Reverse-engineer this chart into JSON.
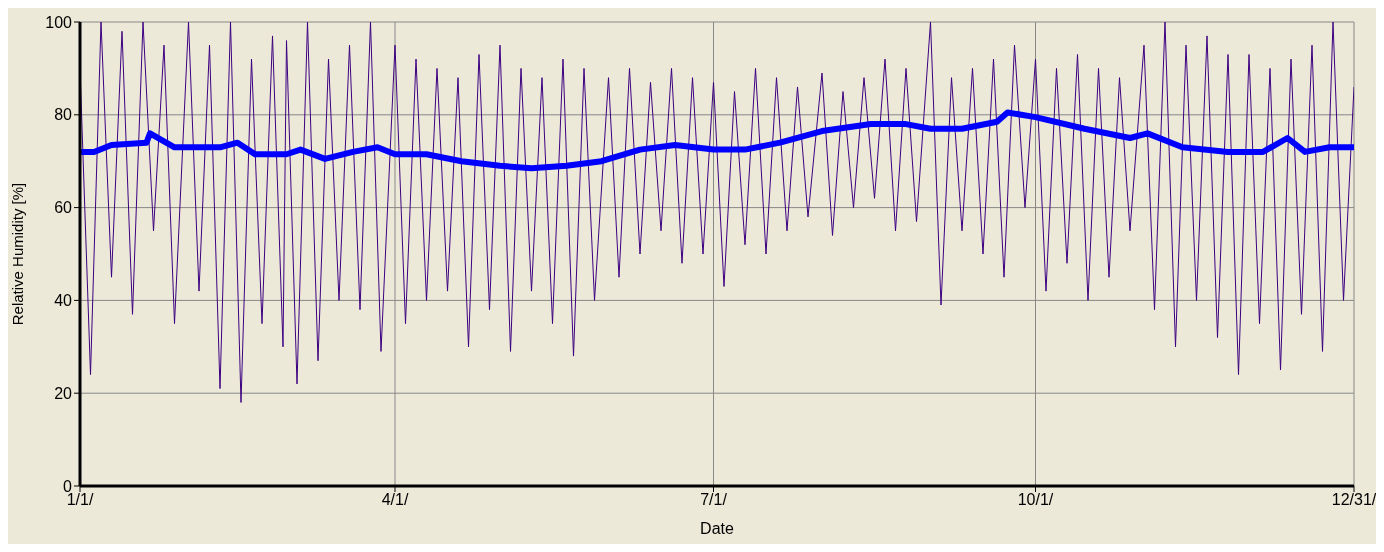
{
  "chart_data": {
    "type": "line",
    "xlabel": "Date",
    "ylabel": "Relative Humidity [%]",
    "xlim": [
      "--01-01",
      "--12-31"
    ],
    "xticks": [
      {
        "value": "--01-01",
        "label": "1/1/"
      },
      {
        "value": "--04-01",
        "label": "4/1/"
      },
      {
        "value": "--07-01",
        "label": "7/1/"
      },
      {
        "value": "--10-01",
        "label": "10/1/"
      },
      {
        "value": "--12-31",
        "label": "12/31/"
      }
    ],
    "ylim": [
      0,
      100
    ],
    "yticks": [
      0,
      20,
      40,
      60,
      80,
      100
    ],
    "grid": true,
    "marker": "none",
    "line_style": "solid",
    "series": [
      {
        "color": "#3c0080",
        "x": [
          "--01-01",
          "--01-04",
          "--01-07",
          "--01-10",
          "--01-13",
          "--01-16",
          "--01-19",
          "--01-22",
          "--01-25",
          "--01-28",
          "--02-01",
          "--02-04",
          "--02-07",
          "--02-10",
          "--02-13",
          "--02-16",
          "--02-19",
          "--02-22",
          "--02-25",
          "--02-28",
          "--03-01",
          "--03-04",
          "--03-07",
          "--03-10",
          "--03-13",
          "--03-16",
          "--03-19",
          "--03-22",
          "--03-25",
          "--03-28",
          "--04-01",
          "--04-04",
          "--04-07",
          "--04-10",
          "--04-13",
          "--04-16",
          "--04-19",
          "--04-22",
          "--04-25",
          "--04-28",
          "--05-01",
          "--05-04",
          "--05-07",
          "--05-10",
          "--05-13",
          "--05-16",
          "--05-19",
          "--05-22",
          "--05-25",
          "--05-28",
          "--06-01",
          "--06-04",
          "--06-07",
          "--06-10",
          "--06-13",
          "--06-16",
          "--06-19",
          "--06-22",
          "--06-25",
          "--06-28",
          "--07-01",
          "--07-04",
          "--07-07",
          "--07-10",
          "--07-13",
          "--07-16",
          "--07-19",
          "--07-22",
          "--07-25",
          "--07-28",
          "--08-01",
          "--08-04",
          "--08-07",
          "--08-10",
          "--08-13",
          "--08-16",
          "--08-19",
          "--08-22",
          "--08-25",
          "--08-28",
          "--09-01",
          "--09-04",
          "--09-07",
          "--09-10",
          "--09-13",
          "--09-16",
          "--09-19",
          "--09-22",
          "--09-25",
          "--09-28",
          "--10-01",
          "--10-04",
          "--10-07",
          "--10-10",
          "--10-13",
          "--10-16",
          "--10-19",
          "--10-22",
          "--10-25",
          "--10-28",
          "--11-01",
          "--11-04",
          "--11-07",
          "--11-10",
          "--11-13",
          "--11-16",
          "--11-19",
          "--11-22",
          "--11-25",
          "--11-28",
          "--12-01",
          "--12-04",
          "--12-07",
          "--12-10",
          "--12-13",
          "--12-16",
          "--12-19",
          "--12-22",
          "--12-25",
          "--12-28",
          "--12-31"
        ],
        "values": [
          90,
          24,
          100,
          45,
          98,
          37,
          100,
          55,
          95,
          35,
          100,
          42,
          95,
          21,
          100,
          18,
          92,
          35,
          97,
          30,
          96,
          22,
          100,
          27,
          92,
          40,
          95,
          38,
          100,
          29,
          95,
          35,
          92,
          40,
          90,
          42,
          88,
          30,
          93,
          38,
          95,
          29,
          90,
          42,
          88,
          35,
          92,
          28,
          90,
          40,
          88,
          45,
          90,
          50,
          87,
          55,
          90,
          48,
          88,
          50,
          87,
          43,
          85,
          52,
          90,
          50,
          88,
          55,
          86,
          58,
          89,
          54,
          85,
          60,
          88,
          62,
          92,
          55,
          90,
          57,
          100,
          39,
          88,
          55,
          90,
          50,
          92,
          45,
          95,
          60,
          92,
          42,
          90,
          48,
          93,
          40,
          90,
          45,
          88,
          55,
          95,
          38,
          100,
          30,
          95,
          40,
          97,
          32,
          93,
          24,
          93,
          35,
          90,
          25,
          92,
          37,
          95,
          29,
          100,
          40,
          86
        ]
      },
      {
        "color": "#0000ff",
        "x": [
          "--01-01",
          "--01-05",
          "--01-10",
          "--01-20",
          "--01-21",
          "--01-28",
          "--02-10",
          "--02-15",
          "--02-20",
          "--03-01",
          "--03-05",
          "--03-12",
          "--03-20",
          "--03-27",
          "--04-01",
          "--04-10",
          "--04-20",
          "--05-01",
          "--05-10",
          "--05-20",
          "--05-30",
          "--06-10",
          "--06-20",
          "--07-01",
          "--07-10",
          "--07-20",
          "--08-01",
          "--08-15",
          "--08-25",
          "--09-01",
          "--09-10",
          "--09-20",
          "--09-23",
          "--10-01",
          "--10-15",
          "--10-28",
          "--11-02",
          "--11-12",
          "--11-25",
          "--12-05",
          "--12-12",
          "--12-17",
          "--12-24",
          "--12-31"
        ],
        "values": [
          72,
          72,
          73.5,
          74,
          76,
          73,
          73,
          74,
          71.5,
          71.5,
          72.5,
          70.5,
          72,
          73,
          71.5,
          71.5,
          70,
          69,
          68.5,
          69,
          70,
          72.5,
          73.5,
          72.5,
          72.5,
          74,
          76.5,
          78,
          78,
          77,
          77,
          78.5,
          80.5,
          79.5,
          77,
          75,
          76,
          73,
          72,
          72,
          75,
          72,
          73,
          73
        ]
      }
    ]
  }
}
